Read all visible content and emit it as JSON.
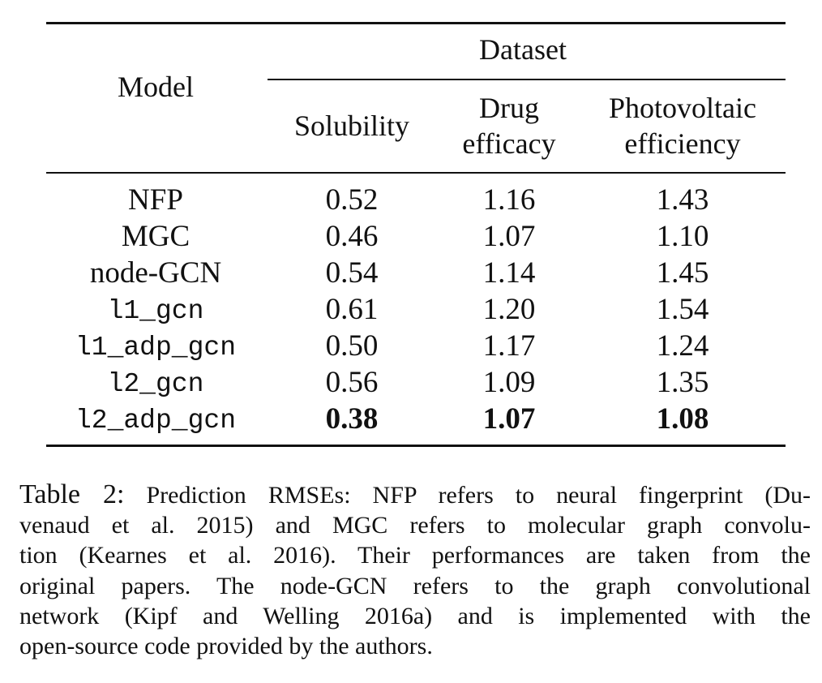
{
  "table": {
    "header": {
      "model": "Model",
      "group": "Dataset",
      "columns": [
        [
          "Solubility"
        ],
        [
          "Drug",
          "efficacy"
        ],
        [
          "Photovoltaic",
          "efficiency"
        ]
      ]
    },
    "rows": [
      {
        "model": "NFP",
        "mono": false,
        "values": [
          "0.52",
          "1.16",
          "1.43"
        ],
        "bold": false
      },
      {
        "model": "MGC",
        "mono": false,
        "values": [
          "0.46",
          "1.07",
          "1.10"
        ],
        "bold": false
      },
      {
        "model": "node-GCN",
        "mono": false,
        "values": [
          "0.54",
          "1.14",
          "1.45"
        ],
        "bold": false
      },
      {
        "model": "l1_gcn",
        "mono": true,
        "values": [
          "0.61",
          "1.20",
          "1.54"
        ],
        "bold": false
      },
      {
        "model": "l1_adp_gcn",
        "mono": true,
        "values": [
          "0.50",
          "1.17",
          "1.24"
        ],
        "bold": false
      },
      {
        "model": "l2_gcn",
        "mono": true,
        "values": [
          "0.56",
          "1.09",
          "1.35"
        ],
        "bold": false
      },
      {
        "model": "l2_adp_gcn",
        "mono": true,
        "values": [
          "0.38",
          "1.07",
          "1.08"
        ],
        "bold": true
      }
    ]
  },
  "caption": {
    "label": "Table 2:",
    "lines": [
      "Prediction RMSEs: NFP refers to neural fingerprint (Du-",
      "venaud et al. 2015) and MGC refers to molecular graph convolu-",
      "tion (Kearnes et al. 2016). Their performances are taken from the",
      "original papers. The node-GCN refers to the graph convolutional",
      "network (Kipf and Welling 2016a) and is implemented with the",
      "open-source code provided by the authors."
    ]
  }
}
